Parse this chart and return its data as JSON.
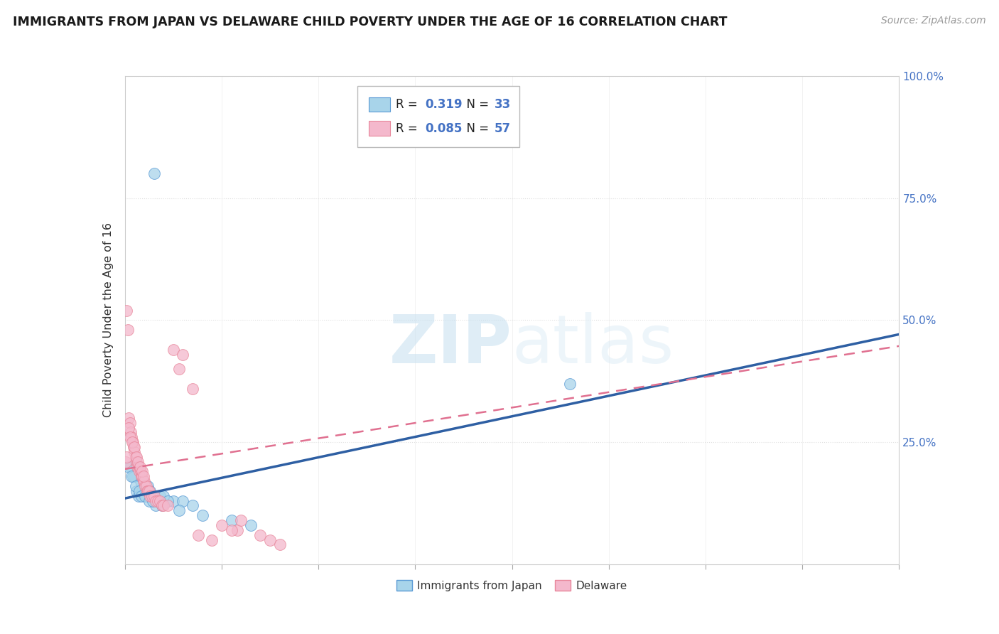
{
  "title": "IMMIGRANTS FROM JAPAN VS DELAWARE CHILD POVERTY UNDER THE AGE OF 16 CORRELATION CHART",
  "source": "Source: ZipAtlas.com",
  "ylabel": "Child Poverty Under the Age of 16",
  "r_blue": 0.319,
  "n_blue": 33,
  "r_pink": 0.085,
  "n_pink": 57,
  "legend_label_blue": "Immigrants from Japan",
  "legend_label_pink": "Delaware",
  "xlim": [
    0.0,
    40.0
  ],
  "ylim": [
    0.0,
    100.0
  ],
  "yticks": [
    0,
    25,
    50,
    75,
    100
  ],
  "ytick_labels": [
    "",
    "25.0%",
    "50.0%",
    "75.0%",
    "100.0%"
  ],
  "xticks": [
    0,
    5,
    10,
    15,
    20,
    25,
    30,
    35,
    40
  ],
  "blue_scatter_x": [
    1.5,
    0.3,
    0.5,
    0.8,
    1.0,
    1.2,
    0.4,
    0.6,
    0.9,
    1.3,
    1.8,
    2.0,
    2.5,
    3.0,
    1.1,
    0.7,
    2.2,
    1.6,
    3.5,
    0.2,
    0.35,
    0.55,
    0.75,
    0.85,
    1.05,
    1.25,
    1.45,
    1.9,
    2.8,
    4.0,
    5.5,
    23.0,
    6.5
  ],
  "blue_scatter_y": [
    80,
    20,
    18,
    17,
    16,
    16,
    18,
    15,
    15,
    15,
    14,
    14,
    13,
    13,
    14,
    14,
    13,
    12,
    12,
    20,
    18,
    16,
    15,
    14,
    14,
    13,
    13,
    12,
    11,
    10,
    9,
    37,
    8
  ],
  "pink_scatter_x": [
    0.05,
    0.1,
    0.15,
    0.2,
    0.25,
    0.3,
    0.35,
    0.4,
    0.45,
    0.5,
    0.55,
    0.6,
    0.65,
    0.7,
    0.75,
    0.8,
    0.85,
    0.9,
    0.95,
    1.0,
    1.05,
    1.1,
    1.15,
    1.2,
    1.25,
    1.3,
    1.4,
    1.5,
    1.6,
    1.7,
    1.8,
    1.9,
    2.0,
    2.2,
    2.5,
    2.8,
    3.0,
    3.5,
    0.08,
    0.18,
    0.28,
    0.38,
    0.48,
    0.58,
    0.68,
    0.78,
    0.88,
    0.98,
    3.8,
    4.5,
    5.0,
    5.8,
    6.0,
    5.5,
    7.0,
    7.5,
    8.0
  ],
  "pink_scatter_y": [
    21,
    52,
    48,
    30,
    29,
    27,
    26,
    25,
    24,
    23,
    22,
    21,
    20,
    20,
    19,
    19,
    18,
    18,
    17,
    17,
    16,
    16,
    15,
    15,
    15,
    14,
    14,
    14,
    13,
    13,
    13,
    12,
    12,
    12,
    44,
    40,
    43,
    36,
    22,
    28,
    26,
    25,
    24,
    22,
    21,
    20,
    19,
    18,
    6,
    5,
    8,
    7,
    9,
    7,
    6,
    5,
    4
  ],
  "blue_color": "#a8d4ea",
  "pink_color": "#f4b8cc",
  "blue_edge_color": "#5b9bd5",
  "pink_edge_color": "#e8869a",
  "blue_line_color": "#2e5fa3",
  "pink_line_color": "#e07090",
  "blue_line_intercept": 13.5,
  "blue_line_slope": 0.84,
  "pink_line_intercept": 19.5,
  "pink_line_slope": 0.63,
  "watermark_zip": "ZIP",
  "watermark_atlas": "atlas",
  "background_color": "#ffffff",
  "grid_color": "#e0e0e0"
}
